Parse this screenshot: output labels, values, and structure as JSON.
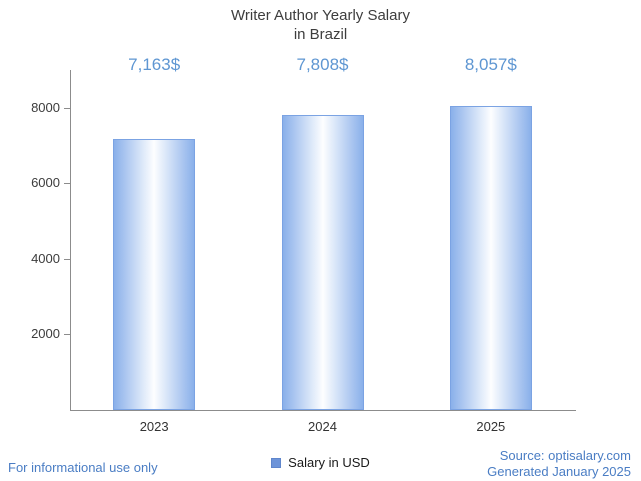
{
  "page": {
    "footer_left": "For informational use only",
    "footer_source": "Source: optisalary.com",
    "footer_generated": "Generated January 2025"
  },
  "colors": {
    "accent_link_blue": "#4a7dc4",
    "value_label_blue": "#5e96d2",
    "bar_edge": "#8ab0ea",
    "bar_center": "#fdfeff",
    "bar_border": "#7ba3e3",
    "axis_gray": "#8c8c8c",
    "text_dark": "#3c3c3c",
    "legend_swatch": "#6d94d9"
  },
  "chart_data": {
    "type": "bar",
    "title": "Writer Author Yearly Salary in Brazil",
    "title_lines": [
      "Writer Author Yearly Salary",
      "in Brazil"
    ],
    "categories": [
      "2023",
      "2024",
      "2025"
    ],
    "series": [
      {
        "name": "Salary in USD",
        "values": [
          7163,
          7808,
          8057
        ]
      }
    ],
    "value_labels": [
      "7,163$",
      "7,808$",
      "8,057$"
    ],
    "xlabel": "",
    "ylabel": "",
    "ylim": [
      0,
      9000
    ],
    "yticks": [
      2000,
      4000,
      6000,
      8000
    ],
    "grid": false,
    "legend_position": "bottom"
  }
}
